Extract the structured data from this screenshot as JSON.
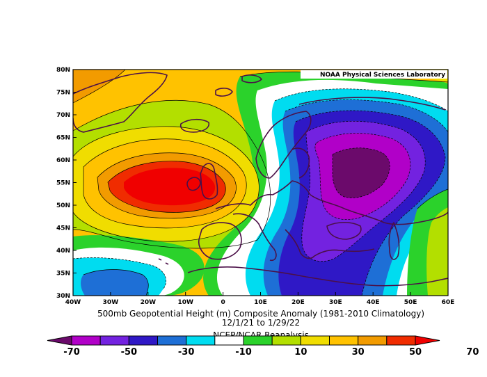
{
  "credit": "NOAA Physical Sciences Laboratory",
  "title": {
    "line1": "500mb Geopotential Height (m) Composite Anomaly (1981-2010 Climatology)",
    "line2": "12/1/21  to 1/29/22",
    "line3": "NCEP/NCAR Reanalysis"
  },
  "map": {
    "lat_labels": [
      "80N",
      "75N",
      "70N",
      "65N",
      "60N",
      "55N",
      "50N",
      "45N",
      "40N",
      "35N",
      "30N"
    ],
    "lon_labels": [
      "40W",
      "30W",
      "20W",
      "10W",
      "0",
      "10E",
      "20E",
      "30E",
      "40E",
      "50E",
      "60E"
    ],
    "extent": {
      "lon": [
        -40,
        60
      ],
      "lat": [
        30,
        80
      ]
    }
  },
  "colorbar": {
    "colors": [
      "#6b0a6b",
      "#b100c8",
      "#7322e0",
      "#2f18c6",
      "#1e6fd6",
      "#00dcf0",
      "#ffffff",
      "#2bd22b",
      "#b3df00",
      "#f0dd00",
      "#ffc200",
      "#f29b00",
      "#f02c00",
      "#f00000"
    ],
    "tick_labels": [
      "-70",
      "-50",
      "-30",
      "-10",
      "10",
      "30",
      "50",
      "70"
    ]
  },
  "chart_data": {
    "type": "heatmap",
    "title": "500mb Geopotential Height (m) Composite Anomaly (1981-2010 Climatology)",
    "subtitle": "12/1/21  to 1/29/22",
    "source": "NCEP/NCAR Reanalysis",
    "x": [
      "40W",
      "30W",
      "20W",
      "10W",
      "0",
      "10E",
      "20E",
      "30E",
      "40E",
      "50E",
      "60E"
    ],
    "y": [
      "80N",
      "75N",
      "70N",
      "65N",
      "60N",
      "55N",
      "50N",
      "45N",
      "40N",
      "35N",
      "30N"
    ],
    "contour_interval": 10,
    "levels": [
      -70,
      -60,
      -50,
      -40,
      -30,
      -20,
      -10,
      0,
      10,
      20,
      30,
      40,
      50,
      60,
      70
    ],
    "features": [
      {
        "type": "high",
        "lon": -15,
        "lat": 55,
        "value": 70
      },
      {
        "type": "low",
        "lon": 37,
        "lat": 57,
        "value": -70
      },
      {
        "type": "low",
        "lon": -30,
        "lat": 32,
        "value": -30
      }
    ]
  }
}
